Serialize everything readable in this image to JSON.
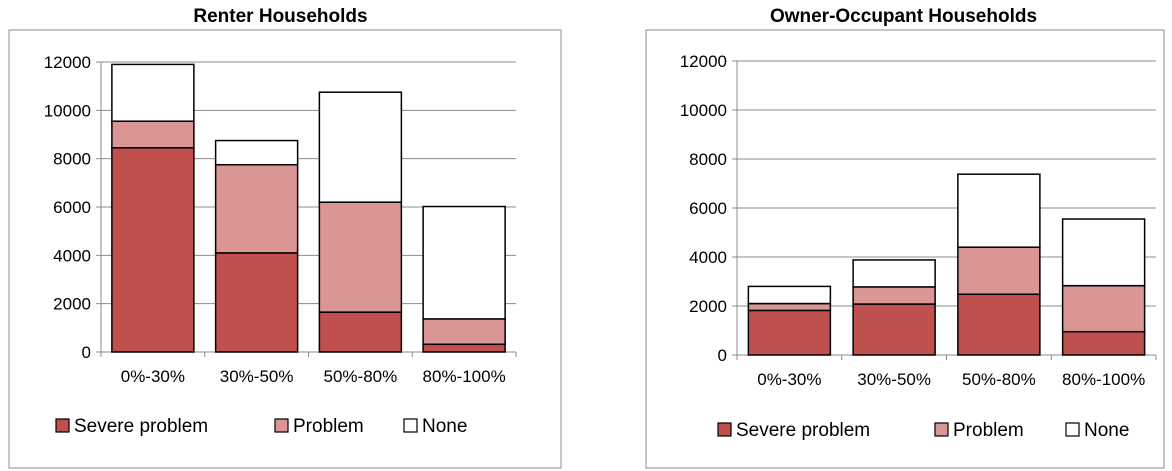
{
  "colors": {
    "severe": "#c0504d",
    "problem": "#d99694",
    "none": "#ffffff",
    "grid": "#8c8c8c",
    "frame": "#8c8c8c"
  },
  "chart_data": [
    {
      "type": "bar",
      "stacked": true,
      "title": "Renter Households",
      "categories": [
        "0%-30%",
        "30%-50%",
        "50%-80%",
        "80%-100%"
      ],
      "series": [
        {
          "name": "Severe problem",
          "values": [
            8450,
            4100,
            1650,
            320
          ]
        },
        {
          "name": "Problem",
          "values": [
            1100,
            3650,
            4550,
            1050
          ]
        },
        {
          "name": "None",
          "values": [
            2350,
            1000,
            4550,
            4650
          ]
        }
      ],
      "ylim": [
        0,
        12000
      ],
      "yticks": [
        0,
        2000,
        4000,
        6000,
        8000,
        10000,
        12000
      ],
      "grid": true,
      "legend": "bottom"
    },
    {
      "type": "bar",
      "stacked": true,
      "title": "Owner-Occupant Households",
      "categories": [
        "0%-30%",
        "30%-50%",
        "50%-80%",
        "80%-100%"
      ],
      "series": [
        {
          "name": "Severe problem",
          "values": [
            1820,
            2080,
            2480,
            950
          ]
        },
        {
          "name": "Problem",
          "values": [
            280,
            700,
            1920,
            1880
          ]
        },
        {
          "name": "None",
          "values": [
            700,
            1100,
            2980,
            2720
          ]
        }
      ],
      "ylim": [
        0,
        12000
      ],
      "yticks": [
        0,
        2000,
        4000,
        6000,
        8000,
        10000,
        12000
      ],
      "grid": true,
      "legend": "bottom"
    }
  ]
}
